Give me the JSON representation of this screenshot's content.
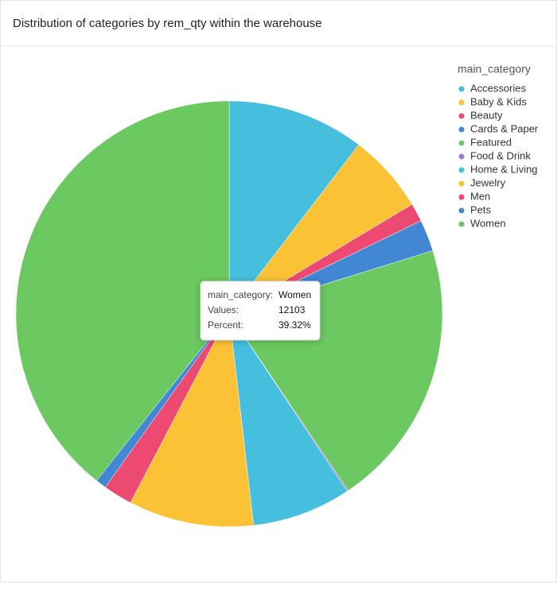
{
  "chart_data": {
    "type": "pie",
    "title": "Distribution of categories by rem_qty within the warehouse",
    "legend_title": "main_category",
    "categories": [
      "Accessories",
      "Baby & Kids",
      "Beauty",
      "Cards & Paper",
      "Featured",
      "Food & Drink",
      "Home & Living",
      "Jewelry",
      "Men",
      "Pets",
      "Women"
    ],
    "values": [
      3200,
      1850,
      430,
      740,
      6270,
      30,
      2310,
      2920,
      680,
      250,
      12103
    ],
    "colors": [
      "#45bfdd",
      "#fbc236",
      "#ec4a71",
      "#4287d4",
      "#6cc860",
      "#a07ad8",
      "#45bfdd",
      "#fbc236",
      "#ec4a71",
      "#4287d4",
      "#6cc860"
    ],
    "legend": "top-right",
    "tooltip": {
      "category_label": "main_category:",
      "category": "Women",
      "values_label": "Values:",
      "value": 12103,
      "percent_label": "Percent:",
      "percent": "39.32%"
    }
  }
}
